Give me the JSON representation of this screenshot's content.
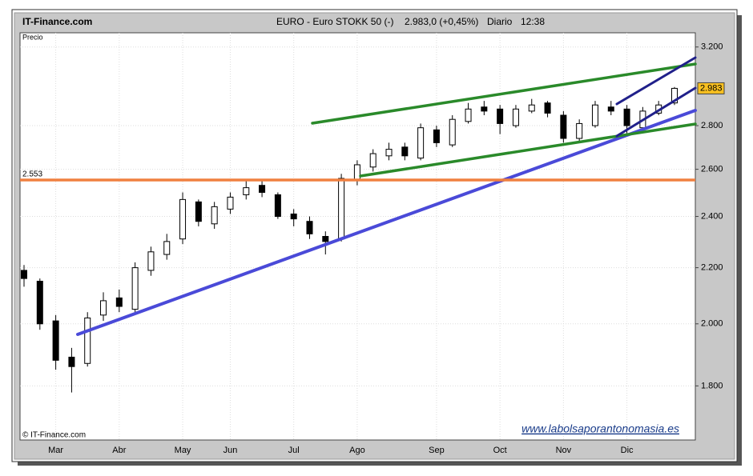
{
  "header": {
    "site": "IT-Finance.com",
    "instrument": "EURO - Euro STOKK 50  (-)",
    "quote": "2.983,0 (+0,45%)",
    "period": "Diario",
    "time": "12:38"
  },
  "chart_data": {
    "type": "candlestick",
    "ylabel": "Precio",
    "credit": "© IT-Finance.com",
    "watermark": "www.labolsaporantonomasia.es",
    "categories": [
      null,
      null,
      "Mar",
      null,
      null,
      null,
      "Abr",
      null,
      null,
      null,
      "May",
      null,
      null,
      "Jun",
      null,
      null,
      null,
      "Jul",
      null,
      null,
      null,
      "Ago",
      null,
      null,
      null,
      null,
      "Sep",
      null,
      null,
      null,
      "Oct",
      null,
      null,
      null,
      "Nov",
      null,
      null,
      null,
      "Dic",
      null,
      null,
      null
    ],
    "open": [
      2190,
      2150,
      2010,
      1890,
      1870,
      2030,
      2090,
      2050,
      2190,
      2250,
      2310,
      2460,
      2370,
      2430,
      2490,
      2530,
      2490,
      2410,
      2380,
      2320,
      2310,
      2550,
      2610,
      2660,
      2700,
      2650,
      2780,
      2710,
      2820,
      2890,
      2880,
      2800,
      2870,
      2910,
      2850,
      2740,
      2800,
      2890,
      2880,
      2790,
      2860,
      2910
    ],
    "high": [
      2210,
      2160,
      2030,
      1920,
      2040,
      2110,
      2120,
      2220,
      2280,
      2330,
      2500,
      2470,
      2460,
      2500,
      2550,
      2550,
      2500,
      2430,
      2400,
      2340,
      2580,
      2640,
      2690,
      2720,
      2720,
      2810,
      2800,
      2850,
      2910,
      2920,
      2900,
      2900,
      2930,
      2920,
      2870,
      2830,
      2920,
      2920,
      2900,
      2890,
      2920,
      2990
    ],
    "low": [
      2130,
      1980,
      1850,
      1780,
      1860,
      2010,
      2040,
      2040,
      2170,
      2230,
      2290,
      2360,
      2350,
      2410,
      2470,
      2480,
      2390,
      2360,
      2310,
      2250,
      2300,
      2530,
      2590,
      2640,
      2640,
      2640,
      2700,
      2700,
      2810,
      2850,
      2760,
      2790,
      2860,
      2840,
      2720,
      2720,
      2790,
      2850,
      2760,
      2780,
      2850,
      2900
    ],
    "close": [
      2160,
      2000,
      1880,
      1860,
      2020,
      2080,
      2060,
      2200,
      2260,
      2300,
      2470,
      2380,
      2440,
      2480,
      2520,
      2500,
      2400,
      2390,
      2330,
      2300,
      2560,
      2620,
      2670,
      2690,
      2660,
      2790,
      2720,
      2830,
      2880,
      2870,
      2810,
      2880,
      2900,
      2860,
      2740,
      2810,
      2900,
      2870,
      2800,
      2870,
      2900,
      2983
    ],
    "last": {
      "value": 2983,
      "label": "2.983"
    },
    "hline": {
      "value": 2553,
      "label": "2.553",
      "color": "#f08040"
    },
    "ylim": [
      1642,
      3278
    ],
    "log_y": true,
    "yticks": [
      {
        "value": 1800,
        "label": "1.800"
      },
      {
        "value": 2000,
        "label": "2.000"
      },
      {
        "value": 2200,
        "label": "2.200"
      },
      {
        "value": 2400,
        "label": "2.400"
      },
      {
        "value": 2600,
        "label": "2.600"
      },
      {
        "value": 2800,
        "label": "2.800"
      },
      {
        "value": 3200,
        "label": "3.200"
      }
    ],
    "grid": true
  }
}
